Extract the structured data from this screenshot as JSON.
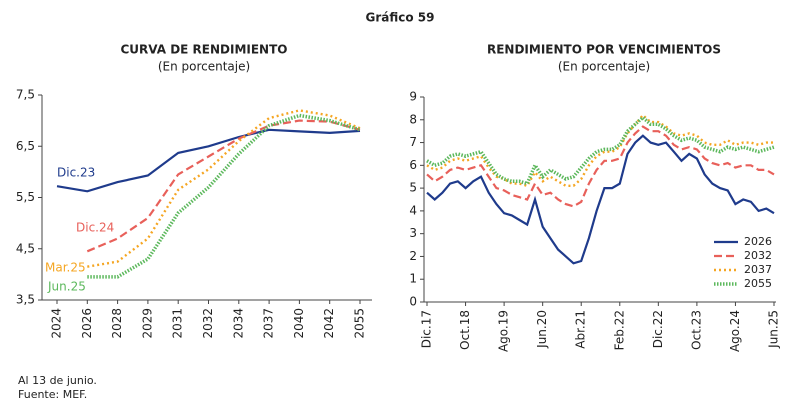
{
  "title": "Gráfico 59",
  "notes": [
    "Al 13 de junio.",
    "Fuente: MEF."
  ],
  "chart_data": [
    {
      "type": "line",
      "title": "CURVA DE RENDIMIENTO",
      "subtitle": "(En porcentaje)",
      "categories": [
        "2024",
        "2026",
        "2028",
        "2029",
        "2031",
        "2032",
        "2034",
        "2037",
        "2040",
        "2042",
        "2055"
      ],
      "ylim": [
        3.5,
        7.5
      ],
      "yticks": [
        {
          "value": 3.5,
          "label": "3,5"
        },
        {
          "value": 4.5,
          "label": "4,5"
        },
        {
          "value": 5.5,
          "label": "5,5"
        },
        {
          "value": 6.5,
          "label": "6,5"
        },
        {
          "value": 7.5,
          "label": "7,5"
        }
      ],
      "legend": "inline",
      "grid": false,
      "series": [
        {
          "name": "Dic.23",
          "color": "#1f3b8c",
          "style": "solid",
          "values": [
            5.72,
            5.62,
            5.8,
            5.93,
            6.37,
            6.5,
            6.68,
            6.82,
            6.79,
            6.76,
            6.8
          ]
        },
        {
          "name": "Dic.24",
          "color": "#e8605a",
          "style": "dashed",
          "values": [
            null,
            4.45,
            4.7,
            5.1,
            5.95,
            6.3,
            6.65,
            6.9,
            7.0,
            6.98,
            6.82
          ]
        },
        {
          "name": "Mar.25",
          "color": "#f5a623",
          "style": "dotted",
          "values": [
            null,
            4.15,
            4.25,
            4.7,
            5.65,
            6.05,
            6.6,
            7.05,
            7.2,
            7.1,
            6.85
          ]
        },
        {
          "name": "Jun.25",
          "color": "#5cb85c",
          "style": "thick-dotted",
          "values": [
            null,
            3.95,
            3.95,
            4.3,
            5.2,
            5.7,
            6.35,
            6.9,
            7.1,
            7.0,
            6.82
          ]
        }
      ]
    },
    {
      "type": "line",
      "title": "RENDIMIENTO POR VENCIMIENTOS",
      "subtitle": "(En porcentaje)",
      "categories": [
        "Dic.17",
        null,
        null,
        null,
        null,
        "Oct.18",
        null,
        null,
        null,
        null,
        "Ago.19",
        null,
        null,
        null,
        null,
        "Jun.20",
        null,
        null,
        null,
        null,
        "Abr.21",
        null,
        null,
        null,
        null,
        "Feb.22",
        null,
        null,
        null,
        null,
        "Dic.22",
        null,
        null,
        null,
        null,
        "Oct.23",
        null,
        null,
        null,
        null,
        "Ago.24",
        null,
        null,
        null,
        null,
        "Jun.25"
      ],
      "ylim": [
        0,
        9
      ],
      "yticks": [
        0,
        1,
        2,
        3,
        4,
        5,
        6,
        7,
        8,
        9
      ],
      "legend": "lower right",
      "grid": false,
      "series": [
        {
          "name": "2026",
          "color": "#1f3b8c",
          "style": "solid",
          "values": [
            4.8,
            4.5,
            4.8,
            5.2,
            5.3,
            5.0,
            5.3,
            5.5,
            4.8,
            4.3,
            3.9,
            3.8,
            3.6,
            3.4,
            4.5,
            3.3,
            2.8,
            2.3,
            2.0,
            1.7,
            1.8,
            2.8,
            4.0,
            5.0,
            5.0,
            5.2,
            6.5,
            7.0,
            7.3,
            7.0,
            6.9,
            7.0,
            6.6,
            6.2,
            6.5,
            6.3,
            5.6,
            5.2,
            5.0,
            4.9,
            4.3,
            4.5,
            4.4,
            4.0,
            4.1,
            3.9
          ]
        },
        {
          "name": "2032",
          "color": "#e8605a",
          "style": "dashed",
          "values": [
            5.6,
            5.3,
            5.5,
            5.8,
            5.9,
            5.8,
            5.9,
            6.0,
            5.5,
            5.0,
            4.9,
            4.7,
            4.6,
            4.5,
            5.2,
            4.7,
            4.8,
            4.5,
            4.3,
            4.2,
            4.4,
            5.2,
            5.8,
            6.2,
            6.2,
            6.3,
            7.0,
            7.4,
            7.7,
            7.5,
            7.5,
            7.3,
            6.9,
            6.7,
            6.8,
            6.7,
            6.3,
            6.1,
            6.0,
            6.1,
            5.9,
            6.0,
            6.0,
            5.8,
            5.8,
            5.6
          ]
        },
        {
          "name": "2037",
          "color": "#f5a623",
          "style": "dotted",
          "values": [
            6.0,
            5.8,
            5.9,
            6.2,
            6.3,
            6.2,
            6.3,
            6.4,
            5.9,
            5.5,
            5.4,
            5.2,
            5.2,
            5.1,
            5.7,
            5.3,
            5.5,
            5.3,
            5.1,
            5.1,
            5.4,
            6.0,
            6.4,
            6.6,
            6.6,
            6.8,
            7.4,
            7.8,
            8.2,
            7.9,
            7.9,
            7.7,
            7.4,
            7.3,
            7.4,
            7.3,
            7.0,
            6.9,
            6.9,
            7.1,
            6.9,
            7.0,
            7.0,
            6.9,
            7.0,
            7.0
          ]
        },
        {
          "name": "2055",
          "color": "#5cb85c",
          "style": "thick-dotted",
          "values": [
            6.2,
            6.0,
            6.1,
            6.4,
            6.5,
            6.4,
            6.5,
            6.6,
            6.1,
            5.6,
            5.4,
            5.3,
            5.3,
            5.2,
            6.0,
            5.5,
            5.8,
            5.6,
            5.4,
            5.5,
            5.9,
            6.3,
            6.6,
            6.7,
            6.7,
            6.9,
            7.5,
            7.8,
            8.1,
            7.8,
            7.8,
            7.6,
            7.3,
            7.1,
            7.2,
            7.1,
            6.8,
            6.7,
            6.6,
            6.8,
            6.7,
            6.8,
            6.7,
            6.6,
            6.7,
            6.8
          ]
        }
      ]
    }
  ]
}
